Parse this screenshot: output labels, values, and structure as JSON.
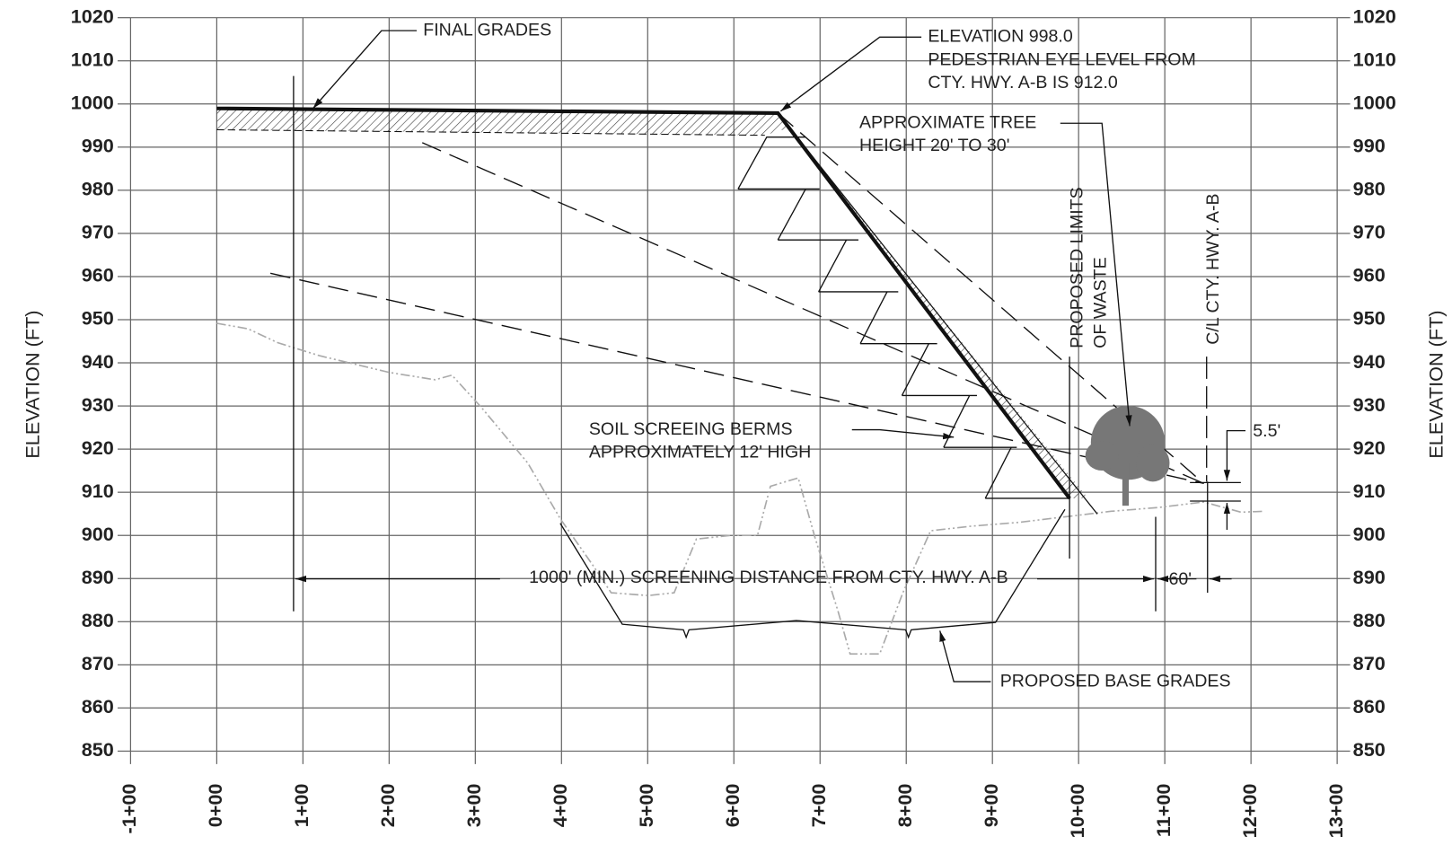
{
  "axes": {
    "y_label": "ELEVATION (FT)",
    "ylim": [
      850,
      1020
    ],
    "yticks": [
      1020,
      1010,
      1000,
      990,
      980,
      970,
      960,
      950,
      940,
      930,
      920,
      910,
      900,
      890,
      880,
      870,
      860,
      850
    ],
    "x_ticks": [
      "-1+00",
      "0+00",
      "1+00",
      "2+00",
      "3+00",
      "4+00",
      "5+00",
      "6+00",
      "7+00",
      "8+00",
      "9+00",
      "10+00",
      "11+00",
      "12+00",
      "13+00"
    ]
  },
  "annotations": {
    "final_grades": "FINAL GRADES",
    "elevation": [
      "ELEVATION 998.0",
      "PEDESTRIAN EYE LEVEL FROM",
      "CTY. HWY. A-B IS 912.0"
    ],
    "tree": [
      "APPROXIMATE TREE",
      "HEIGHT 20' TO 30'"
    ],
    "limits": [
      "PROPOSED LIMITS",
      "OF WASTE"
    ],
    "centerline": "C/L CTY. HWY. A-B",
    "berms": [
      "SOIL SCREEING BERMS",
      "APPROXIMATELY 12' HIGH"
    ],
    "screening_distance": "1000' (MIN.) SCREENING DISTANCE FROM CTY. HWY. A-B",
    "offset": "60'",
    "height_diff": "5.5'",
    "base_grades": "PROPOSED BASE GRADES"
  }
}
